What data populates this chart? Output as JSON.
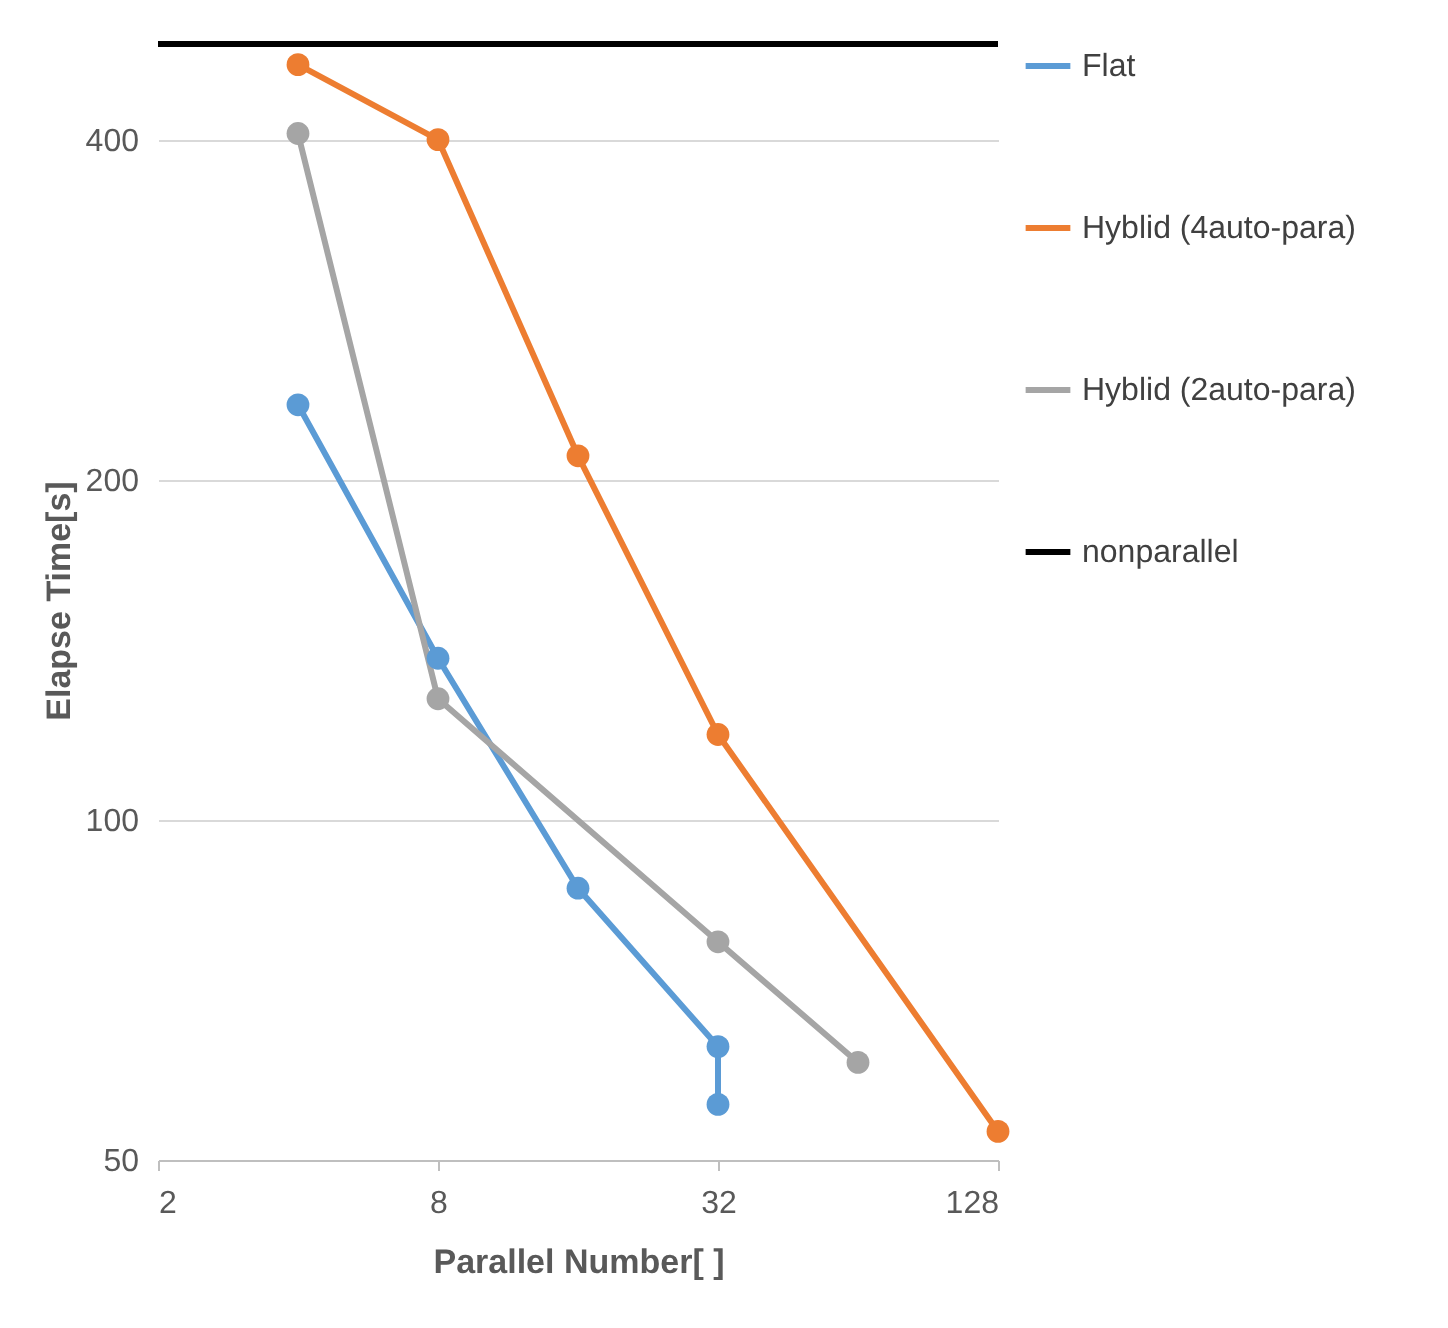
{
  "chart_data": {
    "type": "line",
    "xlabel": "Parallel Number[ ]",
    "ylabel": "Elapse Time[s]",
    "log": "xy",
    "xlim": [
      2,
      128
    ],
    "xticks": [
      2,
      8,
      32,
      128
    ],
    "ylim": [
      50,
      490
    ],
    "yticks": [
      50,
      100,
      200,
      400
    ],
    "grid": "y",
    "legend": "right",
    "marker": "circle",
    "series": [
      {
        "name": "Flat",
        "color": "#5b9bd5",
        "x": [
          4,
          8,
          16,
          32,
          32
        ],
        "values": [
          233,
          139,
          87,
          63,
          56
        ]
      },
      {
        "name": "Hyblid (4auto-para)",
        "color": "#ed7d31",
        "x": [
          4,
          8,
          16,
          32,
          128
        ],
        "values": [
          466,
          400,
          210,
          119,
          53
        ]
      },
      {
        "name": "Hyblid (2auto-para)",
        "color": "#a5a5a5",
        "x": [
          4,
          8,
          32,
          64
        ],
        "values": [
          405,
          128,
          78,
          61
        ]
      },
      {
        "name": "nonparallel",
        "color": "#000000",
        "marker": "none",
        "x": [
          2,
          128
        ],
        "values": [
          486,
          486
        ]
      }
    ]
  }
}
